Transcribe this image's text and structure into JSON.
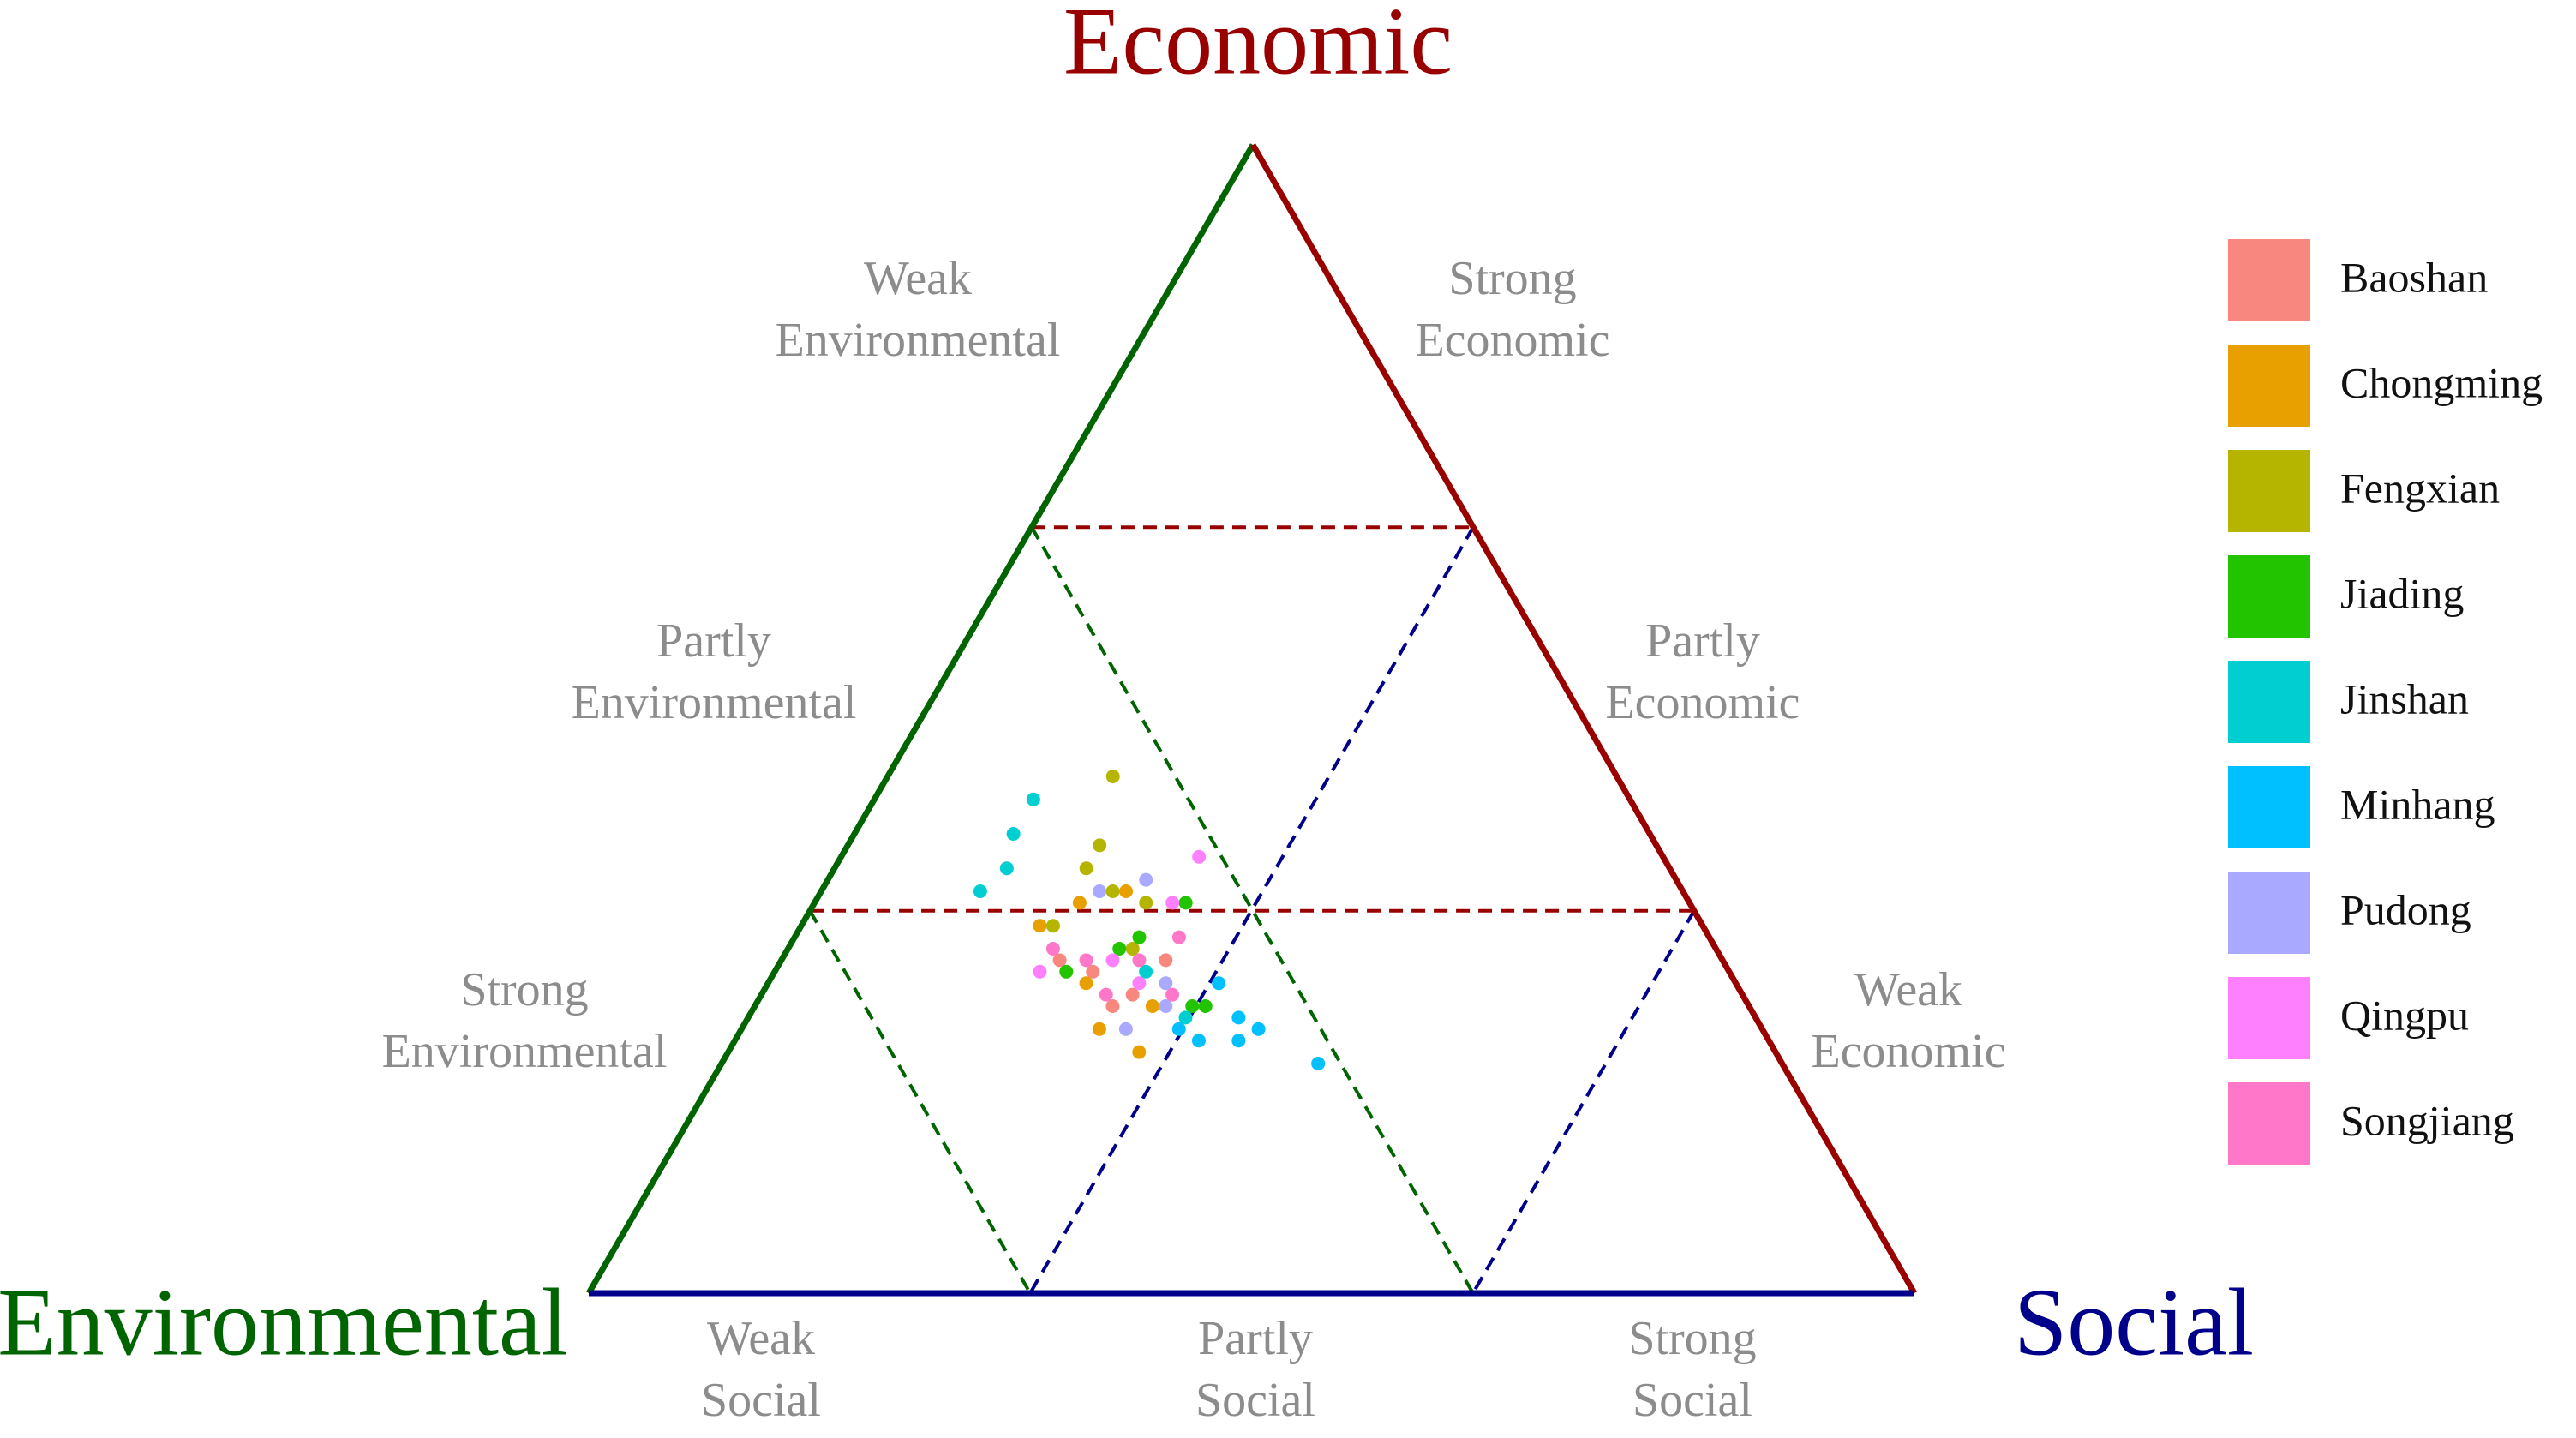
{
  "chart_data": {
    "type": "ternary",
    "axes": {
      "top": {
        "name": "Economic",
        "color": "#990000"
      },
      "left": {
        "name": "Environmental",
        "color": "#006400"
      },
      "right": {
        "name": "Social",
        "color": "#00008B"
      }
    },
    "thresholds": [
      0.333,
      0.667
    ],
    "zone_labels": {
      "environmental": [
        [
          "Weak",
          "Environmental"
        ],
        [
          "Partly",
          "Environmental"
        ],
        [
          "Strong",
          "Environmental"
        ]
      ],
      "economic": [
        [
          "Strong",
          "Economic"
        ],
        [
          "Partly",
          "Economic"
        ],
        [
          "Weak",
          "Economic"
        ]
      ],
      "social": [
        [
          "Weak",
          "Social"
        ],
        [
          "Partly",
          "Social"
        ],
        [
          "Strong",
          "Social"
        ]
      ]
    },
    "series": [
      {
        "name": "Baoshan",
        "color": "#F8877F",
        "economic": [
          0.28,
          0.26,
          0.29,
          0.29,
          0.25
        ],
        "social": [
          0.24,
          0.28,
          0.21,
          0.29,
          0.27
        ],
        "environmental": [
          0.48,
          0.46,
          0.5,
          0.42,
          0.48
        ]
      },
      {
        "name": "Chongming",
        "color": "#E8A000",
        "economic": [
          0.34,
          0.32,
          0.23,
          0.21,
          0.27,
          0.25,
          0.35
        ],
        "social": [
          0.2,
          0.18,
          0.27,
          0.31,
          0.24,
          0.3,
          0.23
        ],
        "environmental": [
          0.46,
          0.5,
          0.5,
          0.48,
          0.49,
          0.45,
          0.42
        ]
      },
      {
        "name": "Fengxian",
        "color": "#B5B500",
        "economic": [
          0.45,
          0.39,
          0.37,
          0.35,
          0.34,
          0.3,
          0.32
        ],
        "social": [
          0.17,
          0.19,
          0.19,
          0.22,
          0.25,
          0.26,
          0.19
        ],
        "environmental": [
          0.38,
          0.42,
          0.44,
          0.43,
          0.41,
          0.44,
          0.49
        ]
      },
      {
        "name": "Jiading",
        "color": "#22C400",
        "economic": [
          0.34,
          0.25,
          0.25,
          0.3,
          0.28,
          0.31
        ],
        "social": [
          0.28,
          0.34,
          0.33,
          0.25,
          0.22,
          0.26
        ],
        "environmental": [
          0.38,
          0.41,
          0.42,
          0.45,
          0.5,
          0.43
        ]
      },
      {
        "name": "Jinshan",
        "color": "#00CED0",
        "economic": [
          0.43,
          0.4,
          0.37,
          0.35,
          0.28,
          0.24
        ],
        "social": [
          0.12,
          0.12,
          0.13,
          0.12,
          0.28,
          0.33
        ],
        "environmental": [
          0.45,
          0.48,
          0.5,
          0.53,
          0.44,
          0.43
        ]
      },
      {
        "name": "Minhang",
        "color": "#00C0FF",
        "economic": [
          0.2,
          0.23,
          0.22,
          0.27,
          0.24,
          0.22,
          0.23
        ],
        "social": [
          0.45,
          0.39,
          0.38,
          0.34,
          0.37,
          0.35,
          0.33
        ],
        "environmental": [
          0.35,
          0.38,
          0.4,
          0.39,
          0.39,
          0.43,
          0.44
        ]
      },
      {
        "name": "Pudong",
        "color": "#A9A9FF",
        "economic": [
          0.35,
          0.36,
          0.23,
          0.25,
          0.27
        ],
        "social": [
          0.21,
          0.24,
          0.29,
          0.31,
          0.3
        ],
        "environmental": [
          0.44,
          0.4,
          0.48,
          0.44,
          0.43
        ]
      },
      {
        "name": "Qingpu",
        "color": "#FF80FF",
        "economic": [
          0.38,
          0.34,
          0.28,
          0.29,
          0.27
        ],
        "social": [
          0.27,
          0.27,
          0.2,
          0.25,
          0.28
        ],
        "environmental": [
          0.35,
          0.39,
          0.52,
          0.46,
          0.45
        ]
      },
      {
        "name": "Songjiang",
        "color": "#FF77C8",
        "economic": [
          0.3,
          0.29,
          0.29,
          0.26,
          0.31,
          0.26
        ],
        "social": [
          0.2,
          0.23,
          0.27,
          0.31,
          0.29,
          0.26
        ],
        "environmental": [
          0.5,
          0.48,
          0.44,
          0.43,
          0.4,
          0.48
        ]
      }
    ]
  }
}
